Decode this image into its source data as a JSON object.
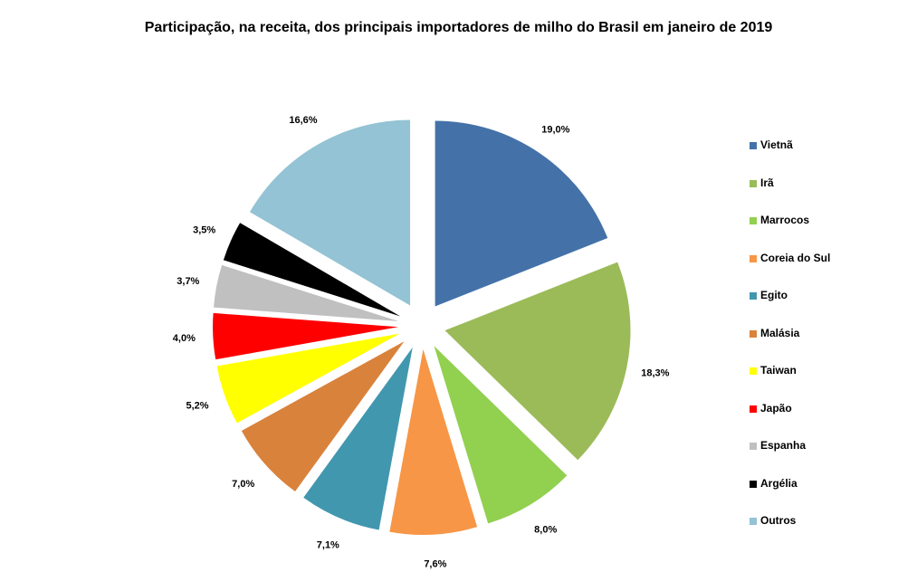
{
  "chart_data": {
    "type": "pie",
    "title": "Participação, na receita, dos principais importadores de milho do Brasil em janeiro de 2019",
    "legend_position": "right",
    "exploded": true,
    "slices": [
      {
        "label": "Vietnã",
        "value": 19.0,
        "display": "19,0%",
        "color": "#4472A8"
      },
      {
        "label": "Irã",
        "value": 18.3,
        "display": "18,3%",
        "color": "#9BBB59"
      },
      {
        "label": "Marrocos",
        "value": 8.0,
        "display": "8,0%",
        "color": "#92D050"
      },
      {
        "label": "Coreia do Sul",
        "value": 7.6,
        "display": "7,6%",
        "color": "#F79646"
      },
      {
        "label": "Egito",
        "value": 7.1,
        "display": "7,1%",
        "color": "#4197AE"
      },
      {
        "label": "Malásia",
        "value": 7.0,
        "display": "7,0%",
        "color": "#D9823B"
      },
      {
        "label": "Taiwan",
        "value": 5.2,
        "display": "5,2%",
        "color": "#FFFF00"
      },
      {
        "label": "Japão",
        "value": 4.0,
        "display": "4,0%",
        "color": "#FF0000"
      },
      {
        "label": "Espanha",
        "value": 3.7,
        "display": "3,7%",
        "color": "#C0C0C0"
      },
      {
        "label": "Argélia",
        "value": 3.5,
        "display": "3,5%",
        "color": "#000000"
      },
      {
        "label": "Outros",
        "value": 16.6,
        "display": "16,6%",
        "color": "#93C3D4"
      }
    ]
  }
}
